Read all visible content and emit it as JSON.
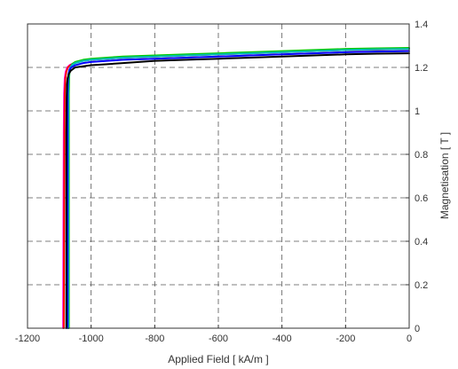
{
  "chart_data": {
    "type": "line",
    "title": "",
    "xlabel": "Applied Field [ kA/m ]",
    "ylabel": "Magnetisation [ T ]",
    "xlim": [
      -1200,
      0
    ],
    "ylim": [
      0,
      1.4
    ],
    "x_ticks": [
      -1200,
      -1000,
      -800,
      -600,
      -400,
      -200,
      0
    ],
    "y_ticks": [
      0,
      0.2,
      0.4,
      0.6,
      0.8,
      1,
      1.2,
      1.4
    ],
    "x_tick_labels": [
      "-1200",
      "-1000",
      "-800",
      "-600",
      "-400",
      "-200",
      "0"
    ],
    "y_tick_labels": [
      "0",
      "0.2",
      "0.4",
      "0.6",
      "0.8",
      "1",
      "1.2",
      "1.4"
    ],
    "y_axis_position": "right",
    "grid": true,
    "legend": "none",
    "series": [
      {
        "color": "#ff00ff",
        "x": [
          -1088,
          -1087,
          -1086,
          -1085,
          -1083,
          -1080,
          -1075,
          -1068,
          -1055,
          -1030,
          -1000,
          -950,
          -900,
          -800,
          -700,
          -600,
          -500,
          -400,
          -300,
          -200,
          -100,
          0
        ],
        "y": [
          0.0,
          0.5,
          0.9,
          1.08,
          1.15,
          1.18,
          1.2,
          1.21,
          1.22,
          1.23,
          1.235,
          1.24,
          1.245,
          1.25,
          1.255,
          1.26,
          1.265,
          1.27,
          1.275,
          1.28,
          1.282,
          1.285
        ]
      },
      {
        "color": "#ff0000",
        "x": [
          -1086,
          -1085,
          -1084,
          -1083,
          -1081,
          -1078,
          -1073,
          -1066,
          -1053,
          -1028,
          -1000,
          -950,
          -900,
          -800,
          -700,
          -600,
          -500,
          -400,
          -300,
          -200,
          -100,
          0
        ],
        "y": [
          0.0,
          0.5,
          0.9,
          1.08,
          1.15,
          1.18,
          1.2,
          1.21,
          1.22,
          1.23,
          1.235,
          1.24,
          1.245,
          1.25,
          1.255,
          1.26,
          1.265,
          1.27,
          1.275,
          1.28,
          1.282,
          1.285
        ]
      },
      {
        "color": "#00cc00",
        "x": [
          -1070,
          -1070,
          -1070,
          -1070,
          -1069,
          -1068,
          -1065,
          -1060,
          -1050,
          -1025,
          -1000,
          -950,
          -900,
          -800,
          -700,
          -600,
          -500,
          -400,
          -300,
          -200,
          -100,
          0
        ],
        "y": [
          0.0,
          0.5,
          0.9,
          1.08,
          1.15,
          1.18,
          1.2,
          1.215,
          1.225,
          1.235,
          1.24,
          1.245,
          1.25,
          1.255,
          1.26,
          1.265,
          1.27,
          1.275,
          1.28,
          1.285,
          1.288,
          1.29
        ]
      },
      {
        "color": "#00bbbb",
        "x": [
          -1072,
          -1072,
          -1072,
          -1072,
          -1071,
          -1069,
          -1066,
          -1061,
          -1050,
          -1025,
          -1000,
          -950,
          -900,
          -800,
          -700,
          -600,
          -500,
          -400,
          -300,
          -200,
          -100,
          0
        ],
        "y": [
          0.0,
          0.5,
          0.9,
          1.08,
          1.15,
          1.18,
          1.2,
          1.21,
          1.22,
          1.23,
          1.235,
          1.24,
          1.245,
          1.25,
          1.255,
          1.26,
          1.265,
          1.27,
          1.275,
          1.28,
          1.283,
          1.285
        ]
      },
      {
        "color": "#0000ff",
        "x": [
          -1074,
          -1074,
          -1074,
          -1074,
          -1073,
          -1071,
          -1068,
          -1062,
          -1050,
          -1025,
          -1000,
          -950,
          -900,
          -800,
          -700,
          -600,
          -500,
          -400,
          -300,
          -200,
          -100,
          0
        ],
        "y": [
          0.0,
          0.5,
          0.9,
          1.08,
          1.14,
          1.17,
          1.19,
          1.2,
          1.21,
          1.22,
          1.225,
          1.23,
          1.235,
          1.24,
          1.245,
          1.25,
          1.255,
          1.26,
          1.265,
          1.27,
          1.273,
          1.275
        ]
      },
      {
        "color": "#000000",
        "x": [
          -1078,
          -1078,
          -1078,
          -1077,
          -1076,
          -1074,
          -1070,
          -1064,
          -1050,
          -1025,
          -1000,
          -950,
          -900,
          -800,
          -700,
          -600,
          -500,
          -400,
          -300,
          -200,
          -100,
          0
        ],
        "y": [
          0.0,
          0.5,
          0.9,
          1.06,
          1.12,
          1.15,
          1.17,
          1.185,
          1.2,
          1.205,
          1.21,
          1.215,
          1.22,
          1.23,
          1.235,
          1.24,
          1.245,
          1.25,
          1.255,
          1.26,
          1.263,
          1.265
        ]
      }
    ]
  }
}
